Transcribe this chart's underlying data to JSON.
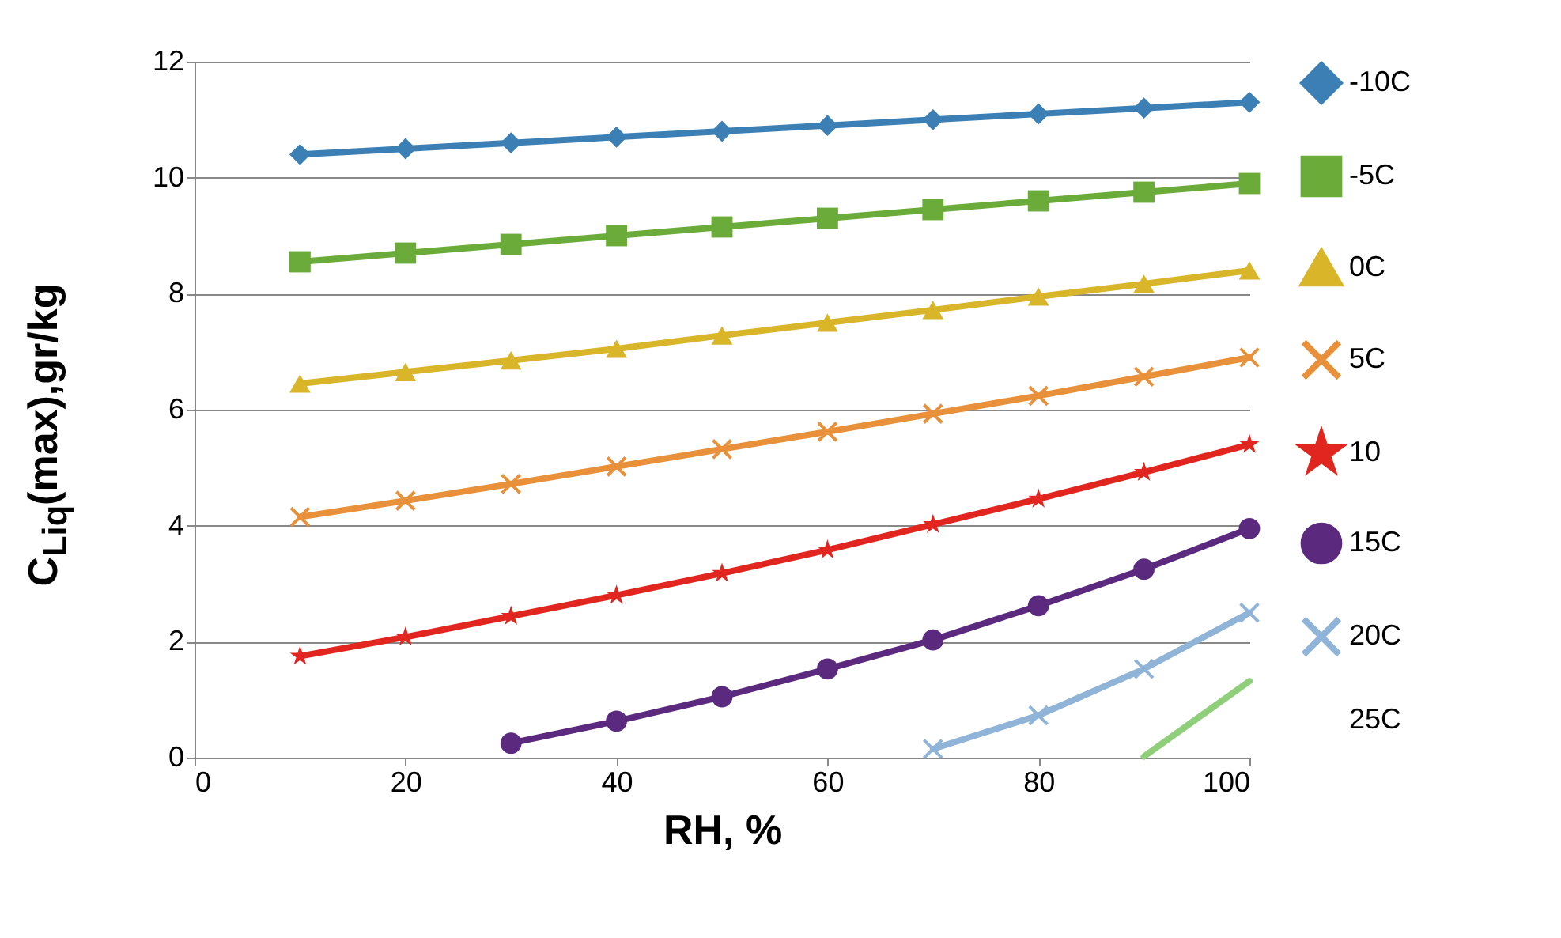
{
  "chart_data": {
    "type": "line",
    "xlabel": "RH, %",
    "ylabel": "C$_{Liq}$(max),gr/kg",
    "xlim": [
      0,
      100
    ],
    "xticks": [
      0,
      20,
      40,
      60,
      80,
      100
    ],
    "ylim": [
      0,
      12
    ],
    "yticks": [
      0,
      2,
      4,
      6,
      8,
      10,
      12
    ],
    "grid": "y",
    "legend": "right",
    "series": [
      {
        "name": "-10C",
        "color": "#3b7fb4",
        "marker": "diamond",
        "x": [
          10,
          20,
          30,
          40,
          50,
          60,
          70,
          80,
          90,
          100
        ],
        "values": [
          10.4,
          10.5,
          10.6,
          10.7,
          10.8,
          10.9,
          11.0,
          11.1,
          11.2,
          11.3
        ]
      },
      {
        "name": "-5C",
        "color": "#6aab3a",
        "marker": "square",
        "x": [
          10,
          20,
          30,
          40,
          50,
          60,
          70,
          80,
          90,
          100
        ],
        "values": [
          8.55,
          8.7,
          8.85,
          9.0,
          9.15,
          9.3,
          9.45,
          9.6,
          9.75,
          9.9
        ]
      },
      {
        "name": "0C",
        "color": "#d9b52a",
        "marker": "triangle",
        "x": [
          10,
          20,
          30,
          40,
          50,
          60,
          70,
          80,
          90,
          100
        ],
        "values": [
          6.45,
          6.65,
          6.85,
          7.05,
          7.28,
          7.5,
          7.72,
          7.95,
          8.17,
          8.4
        ]
      },
      {
        "name": "5C",
        "color": "#e8913a",
        "marker": "cross",
        "x": [
          10,
          20,
          30,
          40,
          50,
          60,
          70,
          80,
          90,
          100
        ],
        "values": [
          4.15,
          4.43,
          4.72,
          5.02,
          5.32,
          5.62,
          5.93,
          6.24,
          6.57,
          6.9
        ]
      },
      {
        "name": "10",
        "color": "#e0261f",
        "marker": "star",
        "x": [
          10,
          20,
          30,
          40,
          50,
          60,
          70,
          80,
          90,
          100
        ],
        "values": [
          1.75,
          2.08,
          2.44,
          2.8,
          3.18,
          3.58,
          4.02,
          4.46,
          4.92,
          5.4
        ]
      },
      {
        "name": "15C",
        "color": "#5b2a7e",
        "marker": "circle",
        "x": [
          30,
          40,
          50,
          60,
          70,
          80,
          90,
          100
        ],
        "values": [
          0.25,
          0.63,
          1.05,
          1.53,
          2.03,
          2.62,
          3.25,
          3.95
        ]
      },
      {
        "name": "20C",
        "color": "#8fb4d8",
        "marker": "cross",
        "x": [
          70,
          80,
          90,
          100
        ],
        "values": [
          0.15,
          0.73,
          1.53,
          2.5
        ]
      },
      {
        "name": "25C",
        "color": "#8fcf7a",
        "marker": "none",
        "x": [
          90,
          100
        ],
        "values": [
          0.02,
          1.32
        ]
      }
    ]
  }
}
